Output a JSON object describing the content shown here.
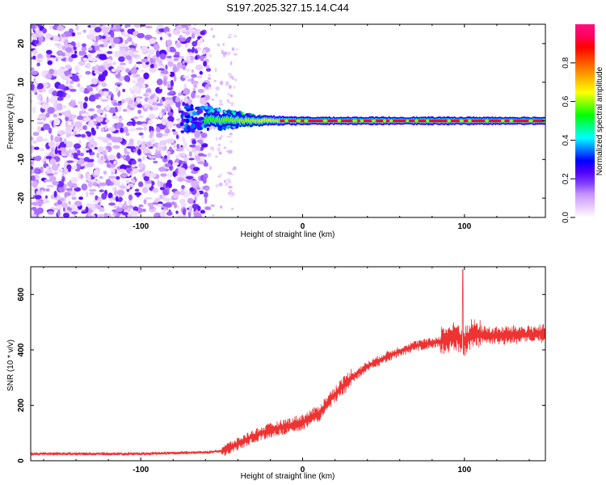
{
  "figure_title": "S197.2025.327.15.14.C44",
  "chart_data": [
    {
      "type": "heatmap",
      "title": "S197.2025.327.15.14.C44",
      "xlabel": "Height of straight line (km)",
      "ylabel": "Frequency (Hz)",
      "xlim": [
        -168,
        150
      ],
      "ylim": [
        -25,
        25
      ],
      "xticks": [
        -100,
        0,
        100
      ],
      "yticks": [
        -20,
        -10,
        0,
        10,
        20
      ],
      "colorbar": {
        "label": "Normalized spectral amplitude",
        "range": [
          0,
          1
        ],
        "ticks": [
          "0.0",
          "0.2",
          "0.4",
          "0.6",
          "0.8"
        ],
        "colors": [
          "#ffffff",
          "#e6c8ff",
          "#c896ff",
          "#8040ff",
          "#5000ff",
          "#0000ff",
          "#0080ff",
          "#00ffff",
          "#00ff80",
          "#00ff00",
          "#80ff00",
          "#ffff00",
          "#ffc000",
          "#ff8000",
          "#ff4000",
          "#ff0000",
          "#ff0060",
          "#ff1080"
        ]
      },
      "features": {
        "noise_region_km": [
          -168,
          -58
        ],
        "sparse_noise_region_km": [
          -58,
          -40
        ],
        "transition_region_km": [
          -75,
          -20
        ],
        "steady_line_start_km": 0,
        "line_frequency_hz": 0,
        "line_amplitude": 0.9
      }
    },
    {
      "type": "line",
      "xlabel": "Height of straight line (km)",
      "ylabel": "SNR (10 * v/v)",
      "xlim": [
        -168,
        150
      ],
      "ylim": [
        0,
        700
      ],
      "xticks": [
        -100,
        0,
        100
      ],
      "yticks": [
        0,
        200,
        400,
        600
      ],
      "color": "#ee3333",
      "series": [
        {
          "name": "SNR",
          "x": [
            -168,
            -140,
            -120,
            -100,
            -80,
            -60,
            -50,
            -40,
            -30,
            -20,
            -10,
            0,
            10,
            20,
            30,
            40,
            50,
            60,
            70,
            80,
            90,
            95,
            100,
            105,
            110,
            120,
            130,
            140,
            150
          ],
          "values": [
            25,
            25,
            25,
            25,
            28,
            30,
            35,
            60,
            90,
            110,
            125,
            140,
            170,
            240,
            300,
            340,
            370,
            395,
            415,
            425,
            440,
            450,
            430,
            460,
            455,
            450,
            455,
            455,
            460
          ]
        }
      ],
      "annotations": {
        "peak_value": 690,
        "peak_x_km": 99
      }
    }
  ]
}
